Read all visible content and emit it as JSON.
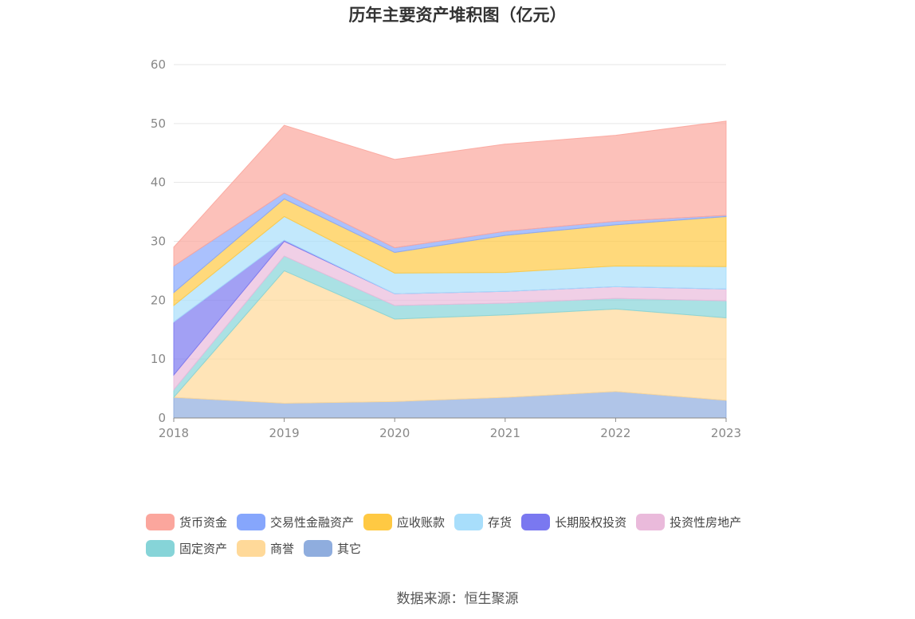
{
  "chart_data": {
    "type": "area",
    "stacked": true,
    "title": "历年主要资产堆积图（亿元）",
    "categories": [
      "2018",
      "2019",
      "2020",
      "2021",
      "2022",
      "2023"
    ],
    "ylim": [
      0,
      60
    ],
    "yticks": [
      "0",
      "10",
      "20",
      "30",
      "40",
      "50",
      "60"
    ],
    "grid": true,
    "legend_position": "bottom",
    "series": [
      {
        "name": "其它",
        "color": "#8fadde",
        "values": [
          3.5,
          2.5,
          2.8,
          3.5,
          4.5,
          3.0
        ]
      },
      {
        "name": "商誉",
        "color": "#ffd999",
        "values": [
          0.0,
          22.5,
          14.0,
          14.0,
          14.0,
          14.0
        ]
      },
      {
        "name": "固定资产",
        "color": "#86d4d8",
        "values": [
          1.3,
          2.5,
          2.3,
          2.0,
          1.8,
          2.9
        ]
      },
      {
        "name": "投资性房地产",
        "color": "#eabadb",
        "values": [
          2.5,
          2.5,
          2.0,
          2.0,
          2.0,
          2.0
        ]
      },
      {
        "name": "长期股权投资",
        "color": "#7a78f0",
        "values": [
          9.0,
          0.2,
          0.0,
          0.0,
          0.0,
          0.0
        ]
      },
      {
        "name": "存货",
        "color": "#a8defb",
        "values": [
          2.8,
          4.0,
          3.5,
          3.2,
          3.5,
          3.8
        ]
      },
      {
        "name": "应收账款",
        "color": "#ffc943",
        "values": [
          2.2,
          3.0,
          3.5,
          6.3,
          7.0,
          8.5
        ]
      },
      {
        "name": "交易性金融资产",
        "color": "#86a6fc",
        "values": [
          4.5,
          1.0,
          0.8,
          0.7,
          0.6,
          0.2
        ]
      },
      {
        "name": "货币资金",
        "color": "#fba69d",
        "values": [
          3.2,
          11.5,
          15.0,
          14.8,
          14.6,
          16.0
        ]
      }
    ]
  },
  "legend": {
    "rows": [
      [
        {
          "label": "货币资金",
          "color": "#fba69d"
        },
        {
          "label": "交易性金融资产",
          "color": "#86a6fc"
        },
        {
          "label": "应收账款",
          "color": "#ffc943"
        },
        {
          "label": "存货",
          "color": "#a8defb"
        },
        {
          "label": "长期股权投资",
          "color": "#7a78f0"
        },
        {
          "label": "投资性房地产",
          "color": "#eabadb"
        }
      ],
      [
        {
          "label": "固定资产",
          "color": "#86d4d8"
        },
        {
          "label": "商誉",
          "color": "#ffd999"
        },
        {
          "label": "其它",
          "color": "#8fadde"
        }
      ]
    ]
  },
  "source": "数据来源：恒生聚源"
}
